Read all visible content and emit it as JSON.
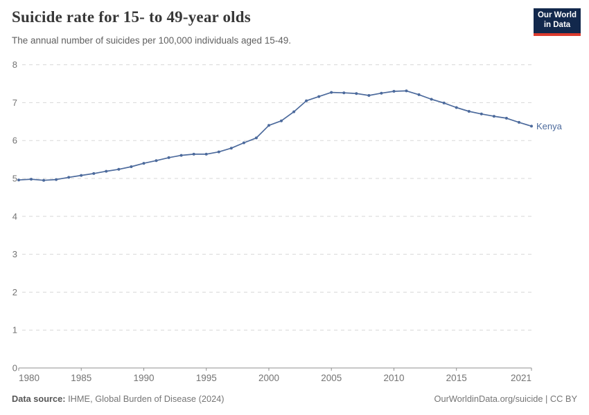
{
  "header": {
    "title": "Suicide rate for 15- to 49-year olds",
    "subtitle": "The annual number of suicides per 100,000 individuals aged 15-49.",
    "logo": {
      "line1": "Our World",
      "line2": "in Data"
    }
  },
  "chart_data": {
    "type": "line",
    "title": "Suicide rate for 15- to 49-year olds",
    "xlabel": "",
    "ylabel": "",
    "ylim": [
      0,
      8
    ],
    "y_ticks": [
      0,
      1,
      2,
      3,
      4,
      5,
      6,
      7,
      8
    ],
    "x_ticks": [
      1980,
      1985,
      1990,
      1995,
      2000,
      2005,
      2010,
      2015,
      2021
    ],
    "xlim": [
      1980,
      2021
    ],
    "grid": "horizontal-dashed",
    "legend_position": "end-of-line-label",
    "series": [
      {
        "name": "Kenya",
        "color": "#4C6A9C",
        "x": [
          1980,
          1981,
          1982,
          1983,
          1984,
          1985,
          1986,
          1987,
          1988,
          1989,
          1990,
          1991,
          1992,
          1993,
          1994,
          1995,
          1996,
          1997,
          1998,
          1999,
          2000,
          2001,
          2002,
          2003,
          2004,
          2005,
          2006,
          2007,
          2008,
          2009,
          2010,
          2011,
          2012,
          2013,
          2014,
          2015,
          2016,
          2017,
          2018,
          2019,
          2020,
          2021
        ],
        "values": [
          4.96,
          4.98,
          4.95,
          4.97,
          5.03,
          5.08,
          5.13,
          5.19,
          5.24,
          5.31,
          5.4,
          5.47,
          5.55,
          5.61,
          5.64,
          5.64,
          5.7,
          5.8,
          5.94,
          6.07,
          6.4,
          6.52,
          6.76,
          7.05,
          7.16,
          7.27,
          7.26,
          7.24,
          7.19,
          7.25,
          7.3,
          7.31,
          7.21,
          7.09,
          6.99,
          6.87,
          6.77,
          6.7,
          6.64,
          6.59,
          6.48,
          6.38
        ]
      }
    ]
  },
  "footer": {
    "source_label": "Data source:",
    "source_text": " IHME, Global Burden of Disease (2024)",
    "link_text": "OurWorldinData.org/suicide | CC BY"
  },
  "colors": {
    "line": "#4C6A9C",
    "logo_bg": "#12284C",
    "logo_stripe": "#DC3B2E",
    "gridline": "#D7D7D7",
    "axis": "#8F8F8F",
    "tick_label": "#737373"
  }
}
